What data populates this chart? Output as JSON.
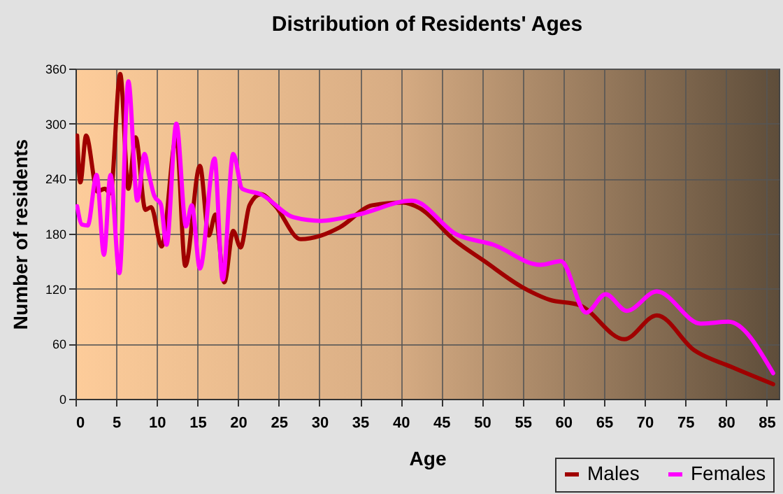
{
  "chart_data": {
    "type": "line",
    "title": "Distribution of Residents' Ages",
    "xlabel": "Age",
    "ylabel": "Number of residents",
    "xlim": [
      0,
      86.5
    ],
    "xticks": [
      0,
      5,
      10,
      15,
      20,
      25,
      30,
      35,
      40,
      45,
      50,
      55,
      60,
      65,
      70,
      75,
      80,
      85
    ],
    "ylim": [
      0,
      360
    ],
    "yticks": [
      0,
      60,
      120,
      180,
      240,
      300,
      360
    ],
    "grid": true,
    "legend": "bottom right",
    "marker": "none",
    "line_style": "solid",
    "series": [
      {
        "name": "Males",
        "color": "#a00000",
        "x": [
          0.2,
          0.6,
          1.3,
          2.7,
          3.6,
          4.3,
          5.5,
          6.5,
          7.4,
          8.6,
          9.3,
          10.6,
          12.4,
          13.5,
          15.3,
          16.4,
          17.2,
          18.3,
          19.4,
          20.3,
          21.4,
          22.8,
          24.5,
          27.7,
          30.2,
          32.5,
          36.5,
          40.3,
          42.3,
          46.6,
          50.3,
          54.9,
          58.3,
          62,
          67.5,
          71.5,
          76.1,
          80.6,
          85.8
        ],
        "values": [
          287,
          236,
          287,
          226,
          229,
          224,
          354,
          229,
          285,
          206,
          209,
          166,
          285,
          145,
          254,
          178,
          201,
          127,
          183,
          165,
          211,
          223,
          211,
          174,
          178,
          187,
          211,
          214,
          208,
          173,
          150,
          122,
          108,
          102,
          65,
          91,
          53,
          35,
          16
        ]
      },
      {
        "name": "Females",
        "color": "#ff00ff",
        "x": [
          0.2,
          0.8,
          1.5,
          2.6,
          3.5,
          4.3,
          5.4,
          6.5,
          7.6,
          8.5,
          9.0,
          9.7,
          10.5,
          11.2,
          12.4,
          13.6,
          14.3,
          15.3,
          17.1,
          18.1,
          19.4,
          20.5,
          22.8,
          26.8,
          30.2,
          34.8,
          41.4,
          46.9,
          51.4,
          57.2,
          59.7,
          62.8,
          65.2,
          67.8,
          71.5,
          76.9,
          80.3,
          85.8
        ],
        "values": [
          210,
          190,
          189,
          244,
          157,
          244,
          137,
          346,
          216,
          267,
          246,
          221,
          212,
          168,
          300,
          188,
          211,
          142,
          262,
          130,
          267,
          229,
          223,
          198,
          194,
          201,
          216,
          179,
          168,
          146,
          150,
          94,
          114,
          96,
          117,
          82,
          84,
          28
        ]
      }
    ]
  }
}
